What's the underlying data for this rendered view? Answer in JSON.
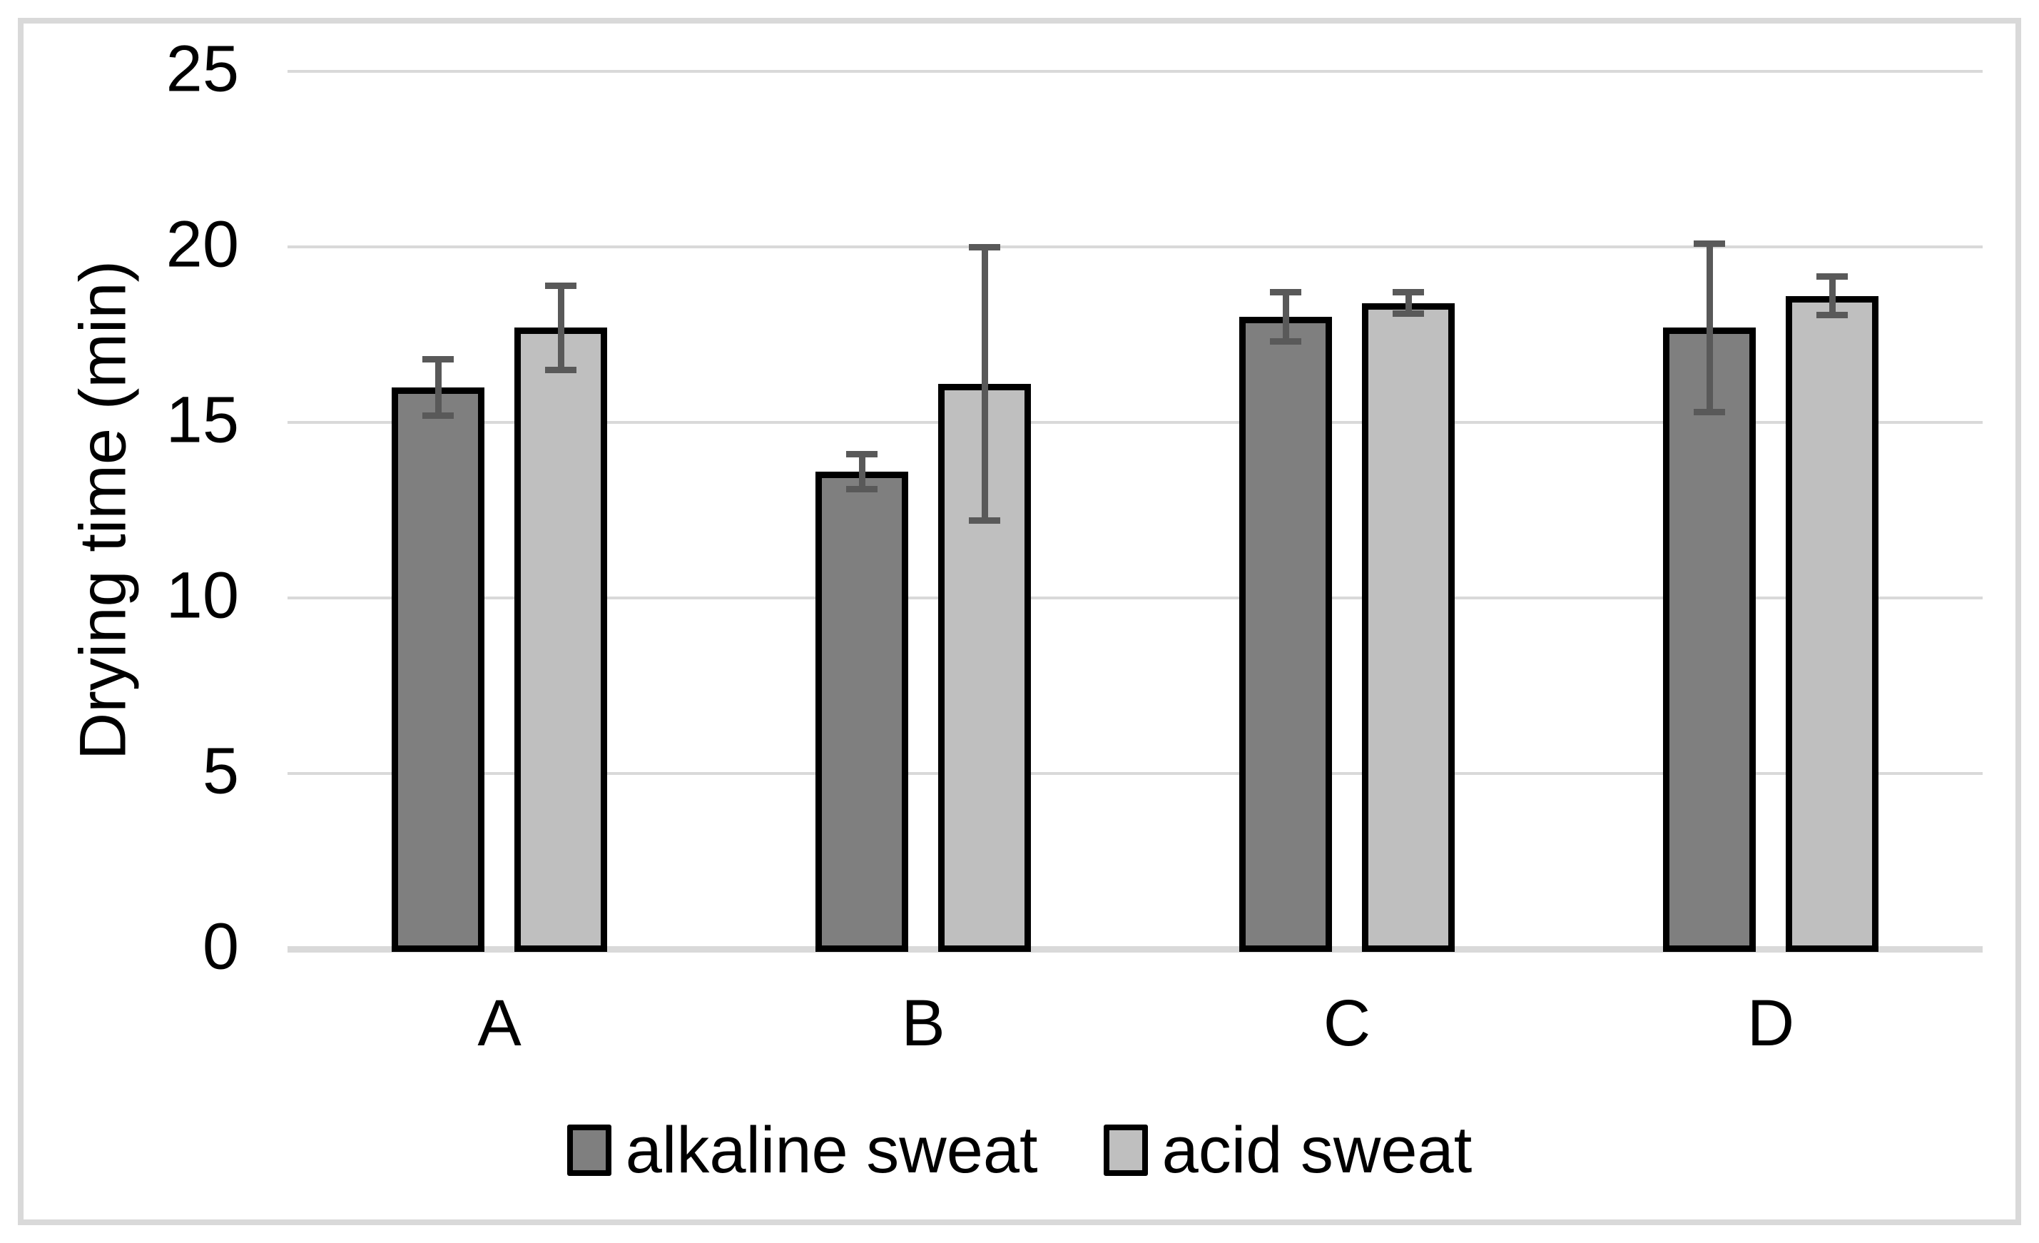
{
  "chart_data": {
    "type": "bar",
    "categories": [
      "A",
      "B",
      "C",
      "D"
    ],
    "series": [
      {
        "name": "alkaline sweat",
        "color": "#7F7F7F",
        "values": [
          16.0,
          13.6,
          18.0,
          17.7
        ],
        "errors": [
          0.8,
          0.5,
          0.7,
          2.4
        ]
      },
      {
        "name": "acid sweat",
        "color": "#BFBFBF",
        "values": [
          17.7,
          16.1,
          18.4,
          18.6
        ],
        "errors": [
          1.2,
          3.9,
          0.3,
          0.55
        ]
      }
    ],
    "title": "",
    "xlabel": "",
    "ylabel": "Drying time (min)",
    "yticks": [
      0,
      5,
      10,
      15,
      20,
      25
    ],
    "ylim": [
      0,
      25
    ],
    "grid": true,
    "legend_position": "bottom-center",
    "colors": {
      "gridline": "#D9D9D9",
      "axis_line": "#D9D9D9",
      "figure_border": "#D9D9D9",
      "error_bar": "#595959",
      "bar_border": "#000000",
      "text": "#000000",
      "background": "#FFFFFF"
    }
  }
}
